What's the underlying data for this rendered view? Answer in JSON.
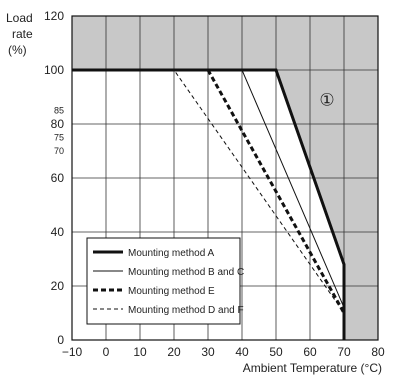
{
  "chart_data": {
    "type": "line",
    "ylabel_lines": [
      "Load",
      "rate",
      "(%)"
    ],
    "xlabel": "Ambient Temperature (°C)",
    "xlim": [
      -10,
      80
    ],
    "ylim": [
      0,
      120
    ],
    "x_ticks": [
      -10,
      0,
      10,
      20,
      30,
      40,
      50,
      60,
      70,
      80
    ],
    "x_tick_labels": [
      "−10",
      "0",
      "10",
      "20",
      "30",
      "40",
      "50",
      "60",
      "70",
      "80"
    ],
    "y_ticks": [
      0,
      20,
      40,
      60,
      80,
      100,
      120
    ],
    "y_minor_ticks": [
      85,
      75,
      70
    ],
    "grid": true,
    "shaded_region_label": "①",
    "legend_position": "bottom-left",
    "series": [
      {
        "name": "Mounting method A",
        "style": "thick-solid",
        "x": [
          -10,
          50,
          70,
          70
        ],
        "y": [
          100,
          100,
          28,
          0
        ]
      },
      {
        "name": "Mounting method B and C",
        "style": "thin-solid",
        "x": [
          -10,
          40,
          70,
          70
        ],
        "y": [
          100,
          100,
          12,
          0
        ]
      },
      {
        "name": "Mounting method E",
        "style": "thick-dashed",
        "x": [
          -10,
          30,
          70,
          70
        ],
        "y": [
          100,
          100,
          10,
          0
        ]
      },
      {
        "name": "Mounting method D and F",
        "style": "thin-dashed",
        "x": [
          -10,
          20,
          70
        ],
        "y": [
          100,
          100,
          10
        ]
      }
    ]
  }
}
